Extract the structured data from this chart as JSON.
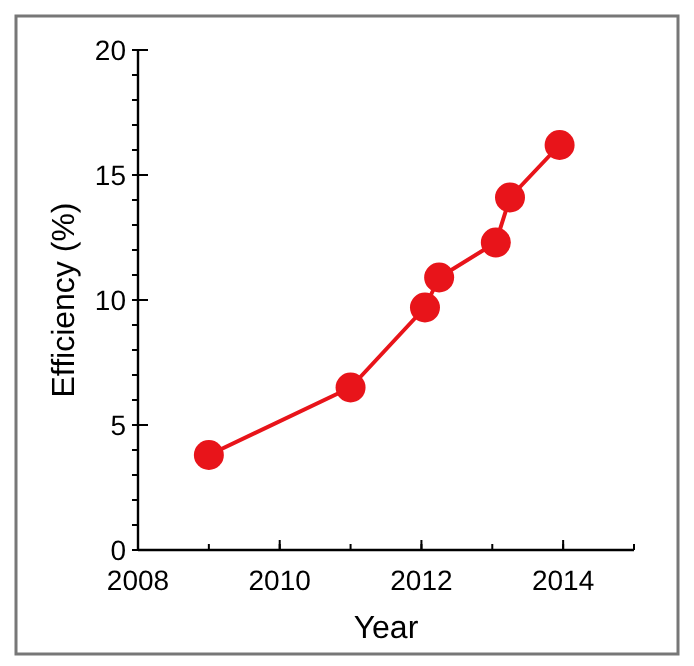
{
  "chart_data": {
    "type": "line",
    "xlabel": "Year",
    "ylabel": "Efficiency (%)",
    "x": [
      2009.0,
      2011.0,
      2012.05,
      2012.25,
      2013.05,
      2013.25,
      2013.95
    ],
    "series": [
      {
        "color": "#e8141a",
        "values": [
          3.8,
          6.5,
          9.7,
          10.9,
          12.3,
          14.1,
          16.2
        ]
      }
    ],
    "xlim": [
      2008,
      2015
    ],
    "xticks": [
      2008,
      2010,
      2012,
      2014
    ],
    "ylim": [
      0,
      20
    ],
    "yticks": [
      0,
      5,
      10,
      15,
      20
    ],
    "marker": "circle",
    "line_style": "solid",
    "grid": false
  }
}
